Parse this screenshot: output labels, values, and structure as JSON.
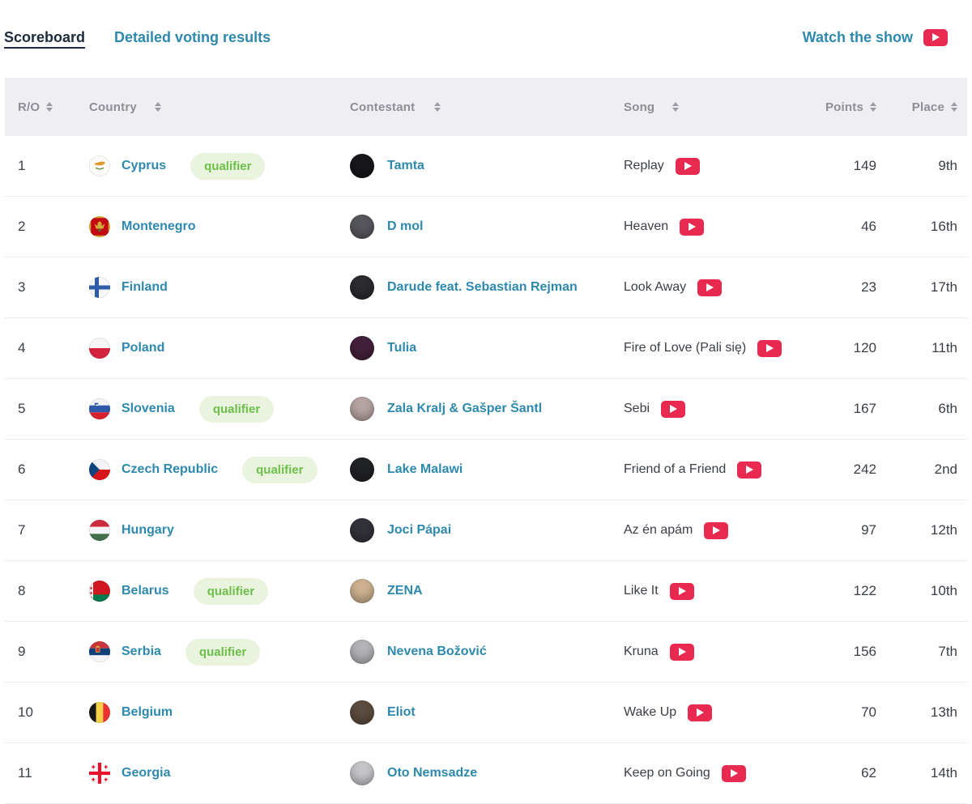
{
  "nav": {
    "scoreboard_label": "Scoreboard",
    "detailed_label": "Detailed voting results",
    "watch_label": "Watch the show"
  },
  "table": {
    "headers": {
      "ro": "R/O",
      "country": "Country",
      "contestant": "Contestant",
      "song": "Song",
      "points": "Points",
      "place": "Place"
    },
    "qualifier_label": "qualifier",
    "rows": [
      {
        "ro": "1",
        "flag": "cyprus",
        "country": "Cyprus",
        "qualifier": true,
        "contestant": "Tamta",
        "song": "Replay",
        "points": "149",
        "place": "9th",
        "avatar_color": "#17171c"
      },
      {
        "ro": "2",
        "flag": "montenegro",
        "country": "Montenegro",
        "qualifier": false,
        "contestant": "D mol",
        "song": "Heaven",
        "points": "46",
        "place": "16th",
        "avatar_color": "#57575e"
      },
      {
        "ro": "3",
        "flag": "finland",
        "country": "Finland",
        "qualifier": false,
        "contestant": "Darude feat. Sebastian Rejman",
        "song": "Look Away",
        "points": "23",
        "place": "17th",
        "avatar_color": "#2b2b30"
      },
      {
        "ro": "4",
        "flag": "poland",
        "country": "Poland",
        "qualifier": false,
        "contestant": "Tulia",
        "song": "Fire of Love (Pali się)",
        "points": "120",
        "place": "11th",
        "avatar_color": "#43203a"
      },
      {
        "ro": "5",
        "flag": "slovenia",
        "country": "Slovenia",
        "qualifier": true,
        "contestant": "Zala Kralj & Gašper Šantl",
        "song": "Sebi",
        "points": "167",
        "place": "6th",
        "avatar_color": "#b8a4a2"
      },
      {
        "ro": "6",
        "flag": "czech",
        "country": "Czech Republic",
        "qualifier": true,
        "contestant": "Lake Malawi",
        "song": "Friend of a Friend",
        "points": "242",
        "place": "2nd",
        "avatar_color": "#212226"
      },
      {
        "ro": "7",
        "flag": "hungary",
        "country": "Hungary",
        "qualifier": false,
        "contestant": "Joci Pápai",
        "song": "Az én apám",
        "points": "97",
        "place": "12th",
        "avatar_color": "#32323a"
      },
      {
        "ro": "8",
        "flag": "belarus",
        "country": "Belarus",
        "qualifier": true,
        "contestant": "ZENA",
        "song": "Like It",
        "points": "122",
        "place": "10th",
        "avatar_color": "#cdb190"
      },
      {
        "ro": "9",
        "flag": "serbia",
        "country": "Serbia",
        "qualifier": true,
        "contestant": "Nevena Božović",
        "song": "Kruna",
        "points": "156",
        "place": "7th",
        "avatar_color": "#b4b4b8"
      },
      {
        "ro": "10",
        "flag": "belgium",
        "country": "Belgium",
        "qualifier": false,
        "contestant": "Eliot",
        "song": "Wake Up",
        "points": "70",
        "place": "13th",
        "avatar_color": "#5e4c3e"
      },
      {
        "ro": "11",
        "flag": "georgia",
        "country": "Georgia",
        "qualifier": false,
        "contestant": "Oto Nemsadze",
        "song": "Keep on Going",
        "points": "62",
        "place": "14th",
        "avatar_color": "#c6c6ca"
      }
    ]
  },
  "colors": {
    "accent_teal": "#2d89ad",
    "nav_dark": "#1c2b3a",
    "youtube_red": "#e82a50",
    "qualifier_green": "#6cbf4a",
    "qualifier_bg": "#e9f3de",
    "header_bg": "#efeef2"
  }
}
